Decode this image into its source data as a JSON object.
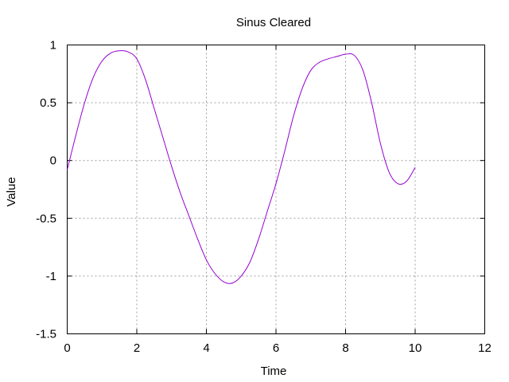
{
  "chart_data": {
    "type": "line",
    "title": "Sinus Cleared",
    "xlabel": "Time",
    "ylabel": "Value",
    "xlim": [
      0,
      12
    ],
    "ylim": [
      -1.5,
      1
    ],
    "xticks": [
      "0",
      "2",
      "4",
      "6",
      "8",
      "10",
      "12"
    ],
    "yticks": [
      "1",
      "0.5",
      "0",
      "-0.5",
      "-1",
      "-1.5"
    ],
    "grid": true,
    "line_color": "#9400d3",
    "series": [
      {
        "x": [
          0,
          0.25,
          0.5,
          0.75,
          1.0,
          1.25,
          1.5,
          1.75,
          2.0,
          2.25,
          2.5,
          2.75,
          3.0,
          3.25,
          3.5,
          3.75,
          4.0,
          4.25,
          4.5,
          4.75,
          5.0,
          5.25,
          5.5,
          5.75,
          6.0,
          6.25,
          6.5,
          6.75,
          7.0,
          7.25,
          7.5,
          7.75,
          8.0,
          8.25,
          8.5,
          8.75,
          9.0,
          9.25,
          9.5,
          9.75,
          10.0
        ],
        "y": [
          -0.08,
          0.22,
          0.5,
          0.72,
          0.86,
          0.93,
          0.95,
          0.94,
          0.88,
          0.7,
          0.45,
          0.2,
          -0.05,
          -0.28,
          -0.48,
          -0.68,
          -0.86,
          -0.98,
          -1.05,
          -1.06,
          -1.0,
          -0.88,
          -0.68,
          -0.44,
          -0.2,
          0.08,
          0.38,
          0.62,
          0.78,
          0.85,
          0.88,
          0.9,
          0.92,
          0.91,
          0.78,
          0.5,
          0.15,
          -0.1,
          -0.2,
          -0.18,
          -0.06
        ]
      }
    ]
  }
}
